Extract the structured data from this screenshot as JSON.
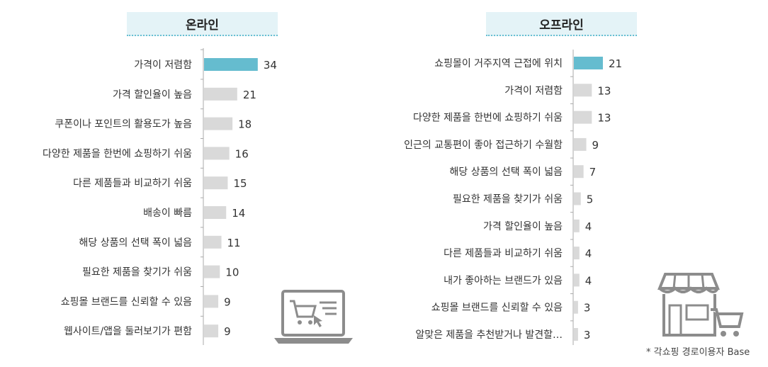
{
  "chart_data": [
    {
      "type": "bar",
      "orientation": "horizontal",
      "title": "온라인",
      "categories": [
        "가격이 저렴함",
        "가격 할인율이 높음",
        "쿠폰이나 포인트의 활용도가 높음",
        "다양한 제품을 한번에 쇼핑하기 쉬움",
        "다른 제품들과 비교하기 쉬움",
        "배송이 빠름",
        "해당 상품의 선택 폭이 넓음",
        "필요한 제품을 찾기가 쉬움",
        "쇼핑몰 브랜드를 신뢰할 수 있음",
        "웹사이트/앱을 둘러보기가 편함"
      ],
      "values": [
        34,
        21,
        18,
        16,
        15,
        14,
        11,
        10,
        9,
        9
      ],
      "highlight_index": 0,
      "xlim": [
        0,
        40
      ]
    },
    {
      "type": "bar",
      "orientation": "horizontal",
      "title": "오프라인",
      "categories": [
        "쇼핑몰이 거주지역 근접에 위치",
        "가격이 저렴함",
        "다양한 제품을 한번에 쇼핑하기 쉬움",
        "인근의 교통편이 좋아 접근하기 수월함",
        "해당 상품의 선택 폭이 넓음",
        "필요한 제품을 찾기가 쉬움",
        "가격 할인율이 높음",
        "다른 제품들과 비교하기 쉬움",
        "내가 좋아하는 브랜드가 있음",
        "쇼핑몰 브랜드를 신뢰할 수 있음",
        "알맞은 제품을 추천받거나 발견할…"
      ],
      "values": [
        21,
        13,
        13,
        9,
        7,
        5,
        4,
        4,
        4,
        3,
        3
      ],
      "highlight_index": 0,
      "xlim": [
        0,
        40
      ]
    }
  ],
  "footnote": "* 각쇼핑 경로이용자 Base",
  "colors": {
    "highlight": "#65bccf",
    "bar": "#d9d9d9",
    "axis": "#aaaaaa",
    "title_bg": "#e4f3f7",
    "title_border": "#68bfd2",
    "icon": "#8c8c8c"
  },
  "icons": [
    "laptop-cart-icon",
    "store-cart-icon"
  ]
}
